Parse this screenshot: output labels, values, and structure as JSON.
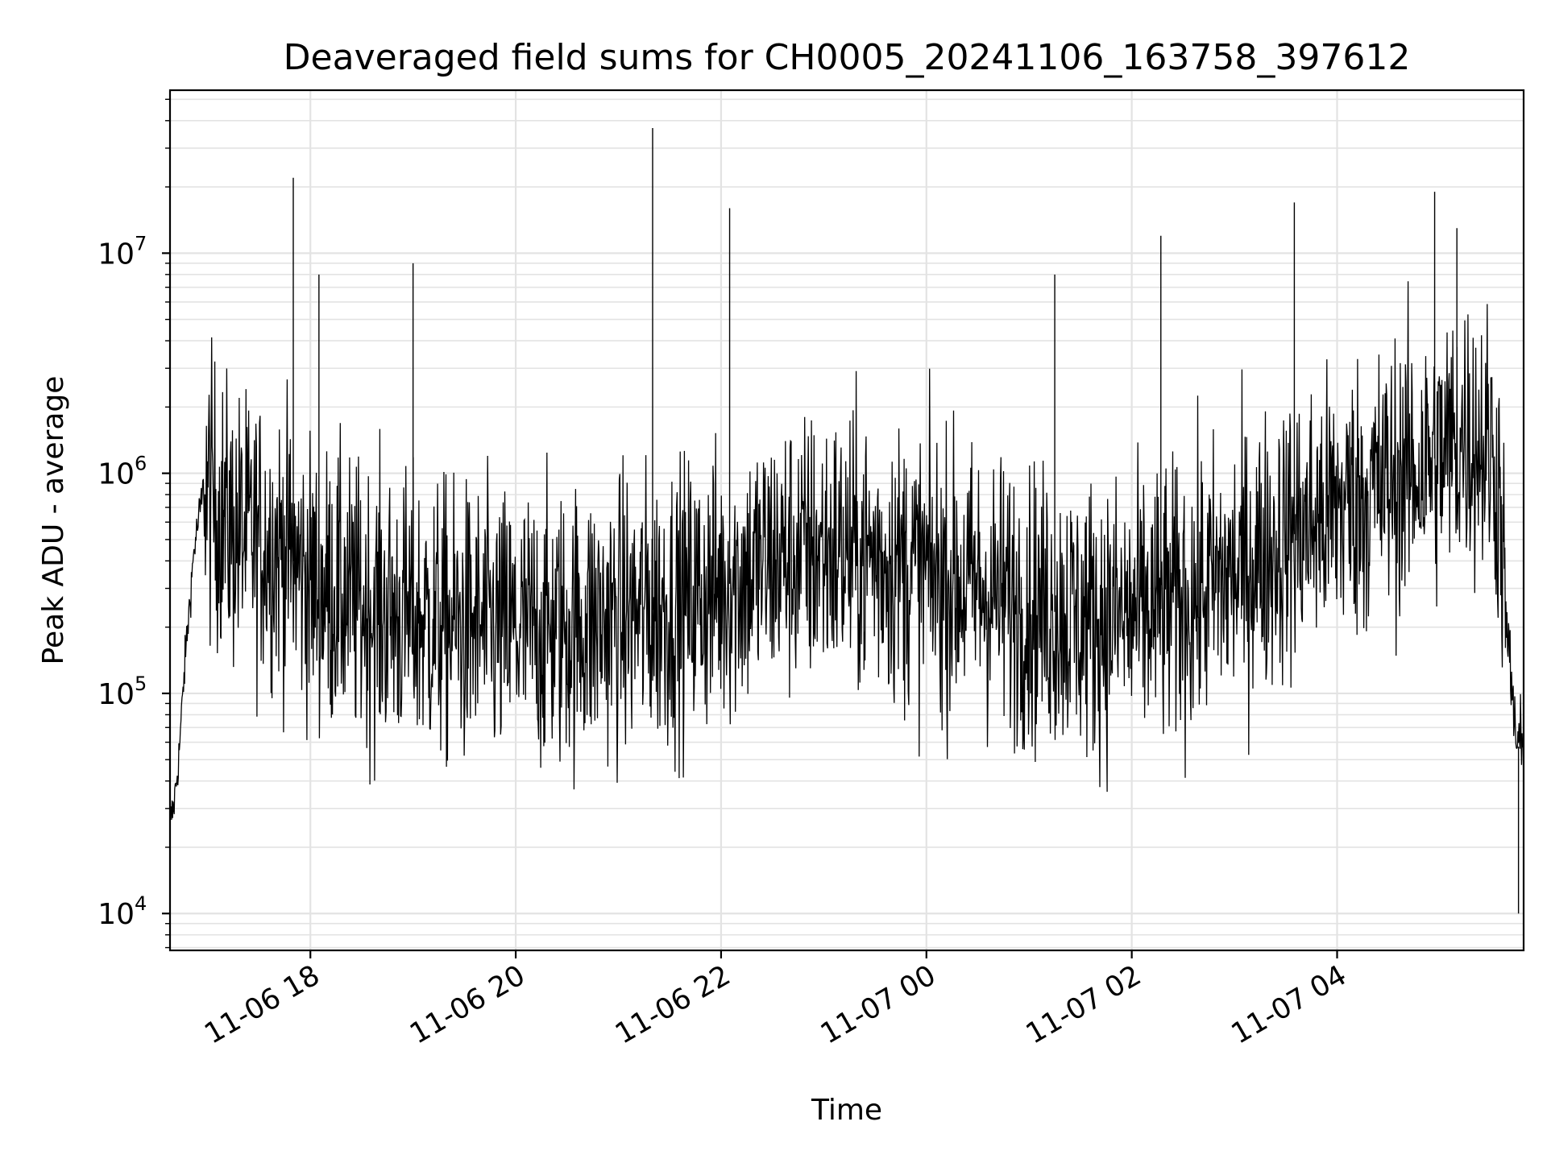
{
  "chart_data": {
    "type": "line",
    "title": "Deaveraged field sums for CH0005_20241106_163758_397612",
    "xlabel": "Time",
    "ylabel": "Peak ADU - average",
    "y_scale": "log",
    "ylim": [
      6800,
      55000000
    ],
    "xlim": [
      "2024-11-06T16:37:58",
      "2024-11-07T05:49:00"
    ],
    "x_ticks": [
      {
        "t": "2024-11-06T18:00",
        "label": "11-06 18"
      },
      {
        "t": "2024-11-06T20:00",
        "label": "11-06 20"
      },
      {
        "t": "2024-11-06T22:00",
        "label": "11-06 22"
      },
      {
        "t": "2024-11-07T00:00",
        "label": "11-07 00"
      },
      {
        "t": "2024-11-07T02:00",
        "label": "11-07 02"
      },
      {
        "t": "2024-11-07T04:00",
        "label": "11-07 04"
      }
    ],
    "y_ticks": [
      {
        "value": 10000,
        "label": "10",
        "exp": "4"
      },
      {
        "value": 100000,
        "label": "10",
        "exp": "5"
      },
      {
        "value": 1000000,
        "label": "10",
        "exp": "6"
      },
      {
        "value": 10000000,
        "label": "10",
        "exp": "7"
      }
    ],
    "grid": true,
    "legend": "none",
    "line_color": "#000000",
    "series": [
      {
        "x": [
          "2024-11-06T16:37:58",
          "2024-11-06T16:40",
          "2024-11-06T16:43",
          "2024-11-06T16:47",
          "2024-11-06T16:52",
          "2024-11-06T16:58",
          "2024-11-06T17:05",
          "2024-11-06T17:15",
          "2024-11-06T17:30",
          "2024-11-06T17:45",
          "2024-11-06T17:50",
          "2024-11-06T18:00",
          "2024-11-06T18:30",
          "2024-11-06T19:00",
          "2024-11-06T19:30",
          "2024-11-06T20:00",
          "2024-11-06T20:30",
          "2024-11-06T21:00",
          "2024-11-06T21:30",
          "2024-11-06T22:00",
          "2024-11-06T22:30",
          "2024-11-06T23:00",
          "2024-11-06T23:30",
          "2024-11-07T00:00",
          "2024-11-07T00:30",
          "2024-11-07T01:00",
          "2024-11-07T01:30",
          "2024-11-07T02:00",
          "2024-11-07T02:30",
          "2024-11-07T03:00",
          "2024-11-07T03:30",
          "2024-11-07T04:00",
          "2024-11-07T04:30",
          "2024-11-07T05:00",
          "2024-11-07T05:15",
          "2024-11-07T05:30",
          "2024-11-07T05:35",
          "2024-11-07T05:40",
          "2024-11-07T05:45",
          "2024-11-07T05:49"
        ],
        "values": [
          26000,
          30000,
          50000,
          150000,
          450000,
          900000,
          700000,
          550000,
          500000,
          450000,
          400000,
          320000,
          250000,
          220000,
          200000,
          190000,
          200000,
          220000,
          250000,
          300000,
          400000,
          450000,
          420000,
          350000,
          300000,
          250000,
          220000,
          220000,
          260000,
          350000,
          500000,
          700000,
          900000,
          1200000,
          1500000,
          1300000,
          800000,
          150000,
          60000,
          50000
        ]
      }
    ],
    "annotations": [
      {
        "x": "2024-11-06T17:50",
        "y": 22000000
      },
      {
        "x": "2024-11-06T18:05",
        "y": 8000000
      },
      {
        "x": "2024-11-06T19:00",
        "y": 9000000
      },
      {
        "x": "2024-11-06T21:20",
        "y": 37000000
      },
      {
        "x": "2024-11-06T22:05",
        "y": 16000000
      },
      {
        "x": "2024-11-07T01:15",
        "y": 8000000
      },
      {
        "x": "2024-11-07T02:17",
        "y": 12000000
      },
      {
        "x": "2024-11-07T03:35",
        "y": 17000000
      },
      {
        "x": "2024-11-07T04:57",
        "y": 19000000
      },
      {
        "x": "2024-11-07T05:10",
        "y": 13000000
      },
      {
        "x": "2024-11-07T05:46",
        "y": 10000
      }
    ]
  }
}
